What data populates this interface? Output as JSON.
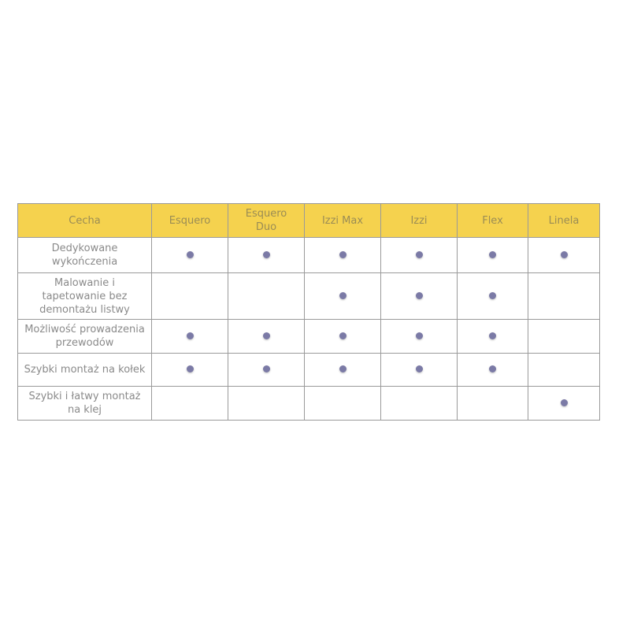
{
  "table": {
    "headers": [
      "Cecha",
      "Esquero",
      "Esquero Duo",
      "Izzi Max",
      "Izzi",
      "Flex",
      "Linela"
    ],
    "rows": [
      {
        "feature": "Dedykowane wykończenia",
        "marks": [
          true,
          true,
          true,
          true,
          true,
          true
        ]
      },
      {
        "feature": "Malowanie i tapetowanie bez demontażu listwy",
        "marks": [
          false,
          false,
          true,
          true,
          true,
          false
        ]
      },
      {
        "feature": "Możliwość prowadzenia przewodów",
        "marks": [
          true,
          true,
          true,
          true,
          true,
          false
        ]
      },
      {
        "feature": "Szybki montaż na kołek",
        "marks": [
          true,
          true,
          true,
          true,
          true,
          false
        ]
      },
      {
        "feature": "Szybki i łatwy montaż na klej",
        "marks": [
          false,
          false,
          false,
          false,
          false,
          true
        ]
      }
    ]
  },
  "colors": {
    "header_bg": "#f5d24e",
    "dot": "#7b7aa6"
  },
  "icons": {
    "mark": "dot-icon"
  }
}
